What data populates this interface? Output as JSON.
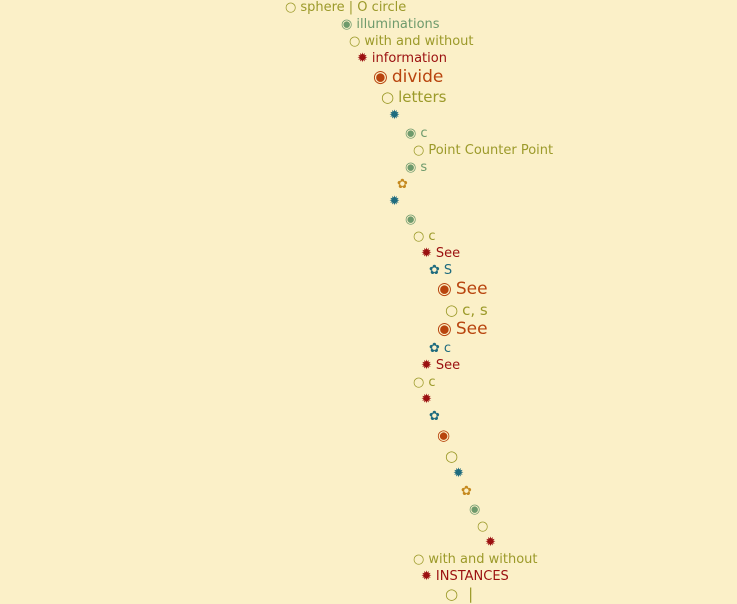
{
  "symbols": {
    "open_circle": "○",
    "dot_circle": "◉",
    "star": "✹",
    "flower": "✿"
  },
  "items": [
    {
      "label": "sphere | O circle"
    },
    {
      "label": "illuminations"
    },
    {
      "label": "with and without"
    },
    {
      "label": "information"
    },
    {
      "label": "divide"
    },
    {
      "label": "letters"
    },
    {
      "label": ""
    },
    {
      "label": "c"
    },
    {
      "label": "Point Counter Point"
    },
    {
      "label": "s"
    },
    {
      "label": ""
    },
    {
      "label": ""
    },
    {
      "label": ""
    },
    {
      "label": "c"
    },
    {
      "label": "See"
    },
    {
      "label": "S"
    },
    {
      "label": "See"
    },
    {
      "label": "c, s"
    },
    {
      "label": "See"
    },
    {
      "label": "c"
    },
    {
      "label": "See"
    },
    {
      "label": "c"
    },
    {
      "label": ""
    },
    {
      "label": ""
    },
    {
      "label": ""
    },
    {
      "label": ""
    },
    {
      "label": ""
    },
    {
      "label": ""
    },
    {
      "label": ""
    },
    {
      "label": ""
    },
    {
      "label": ""
    },
    {
      "label": "with and without"
    },
    {
      "label": "INSTANCES"
    },
    {
      "label": "|"
    }
  ],
  "colors": {
    "background": "#fbf0c8",
    "olive": "#9c9a2a",
    "green": "#6e9a6c",
    "red": "#9b1010",
    "orange": "#b8440e",
    "teal": "#1e6b7e",
    "gold": "#c5891f"
  }
}
